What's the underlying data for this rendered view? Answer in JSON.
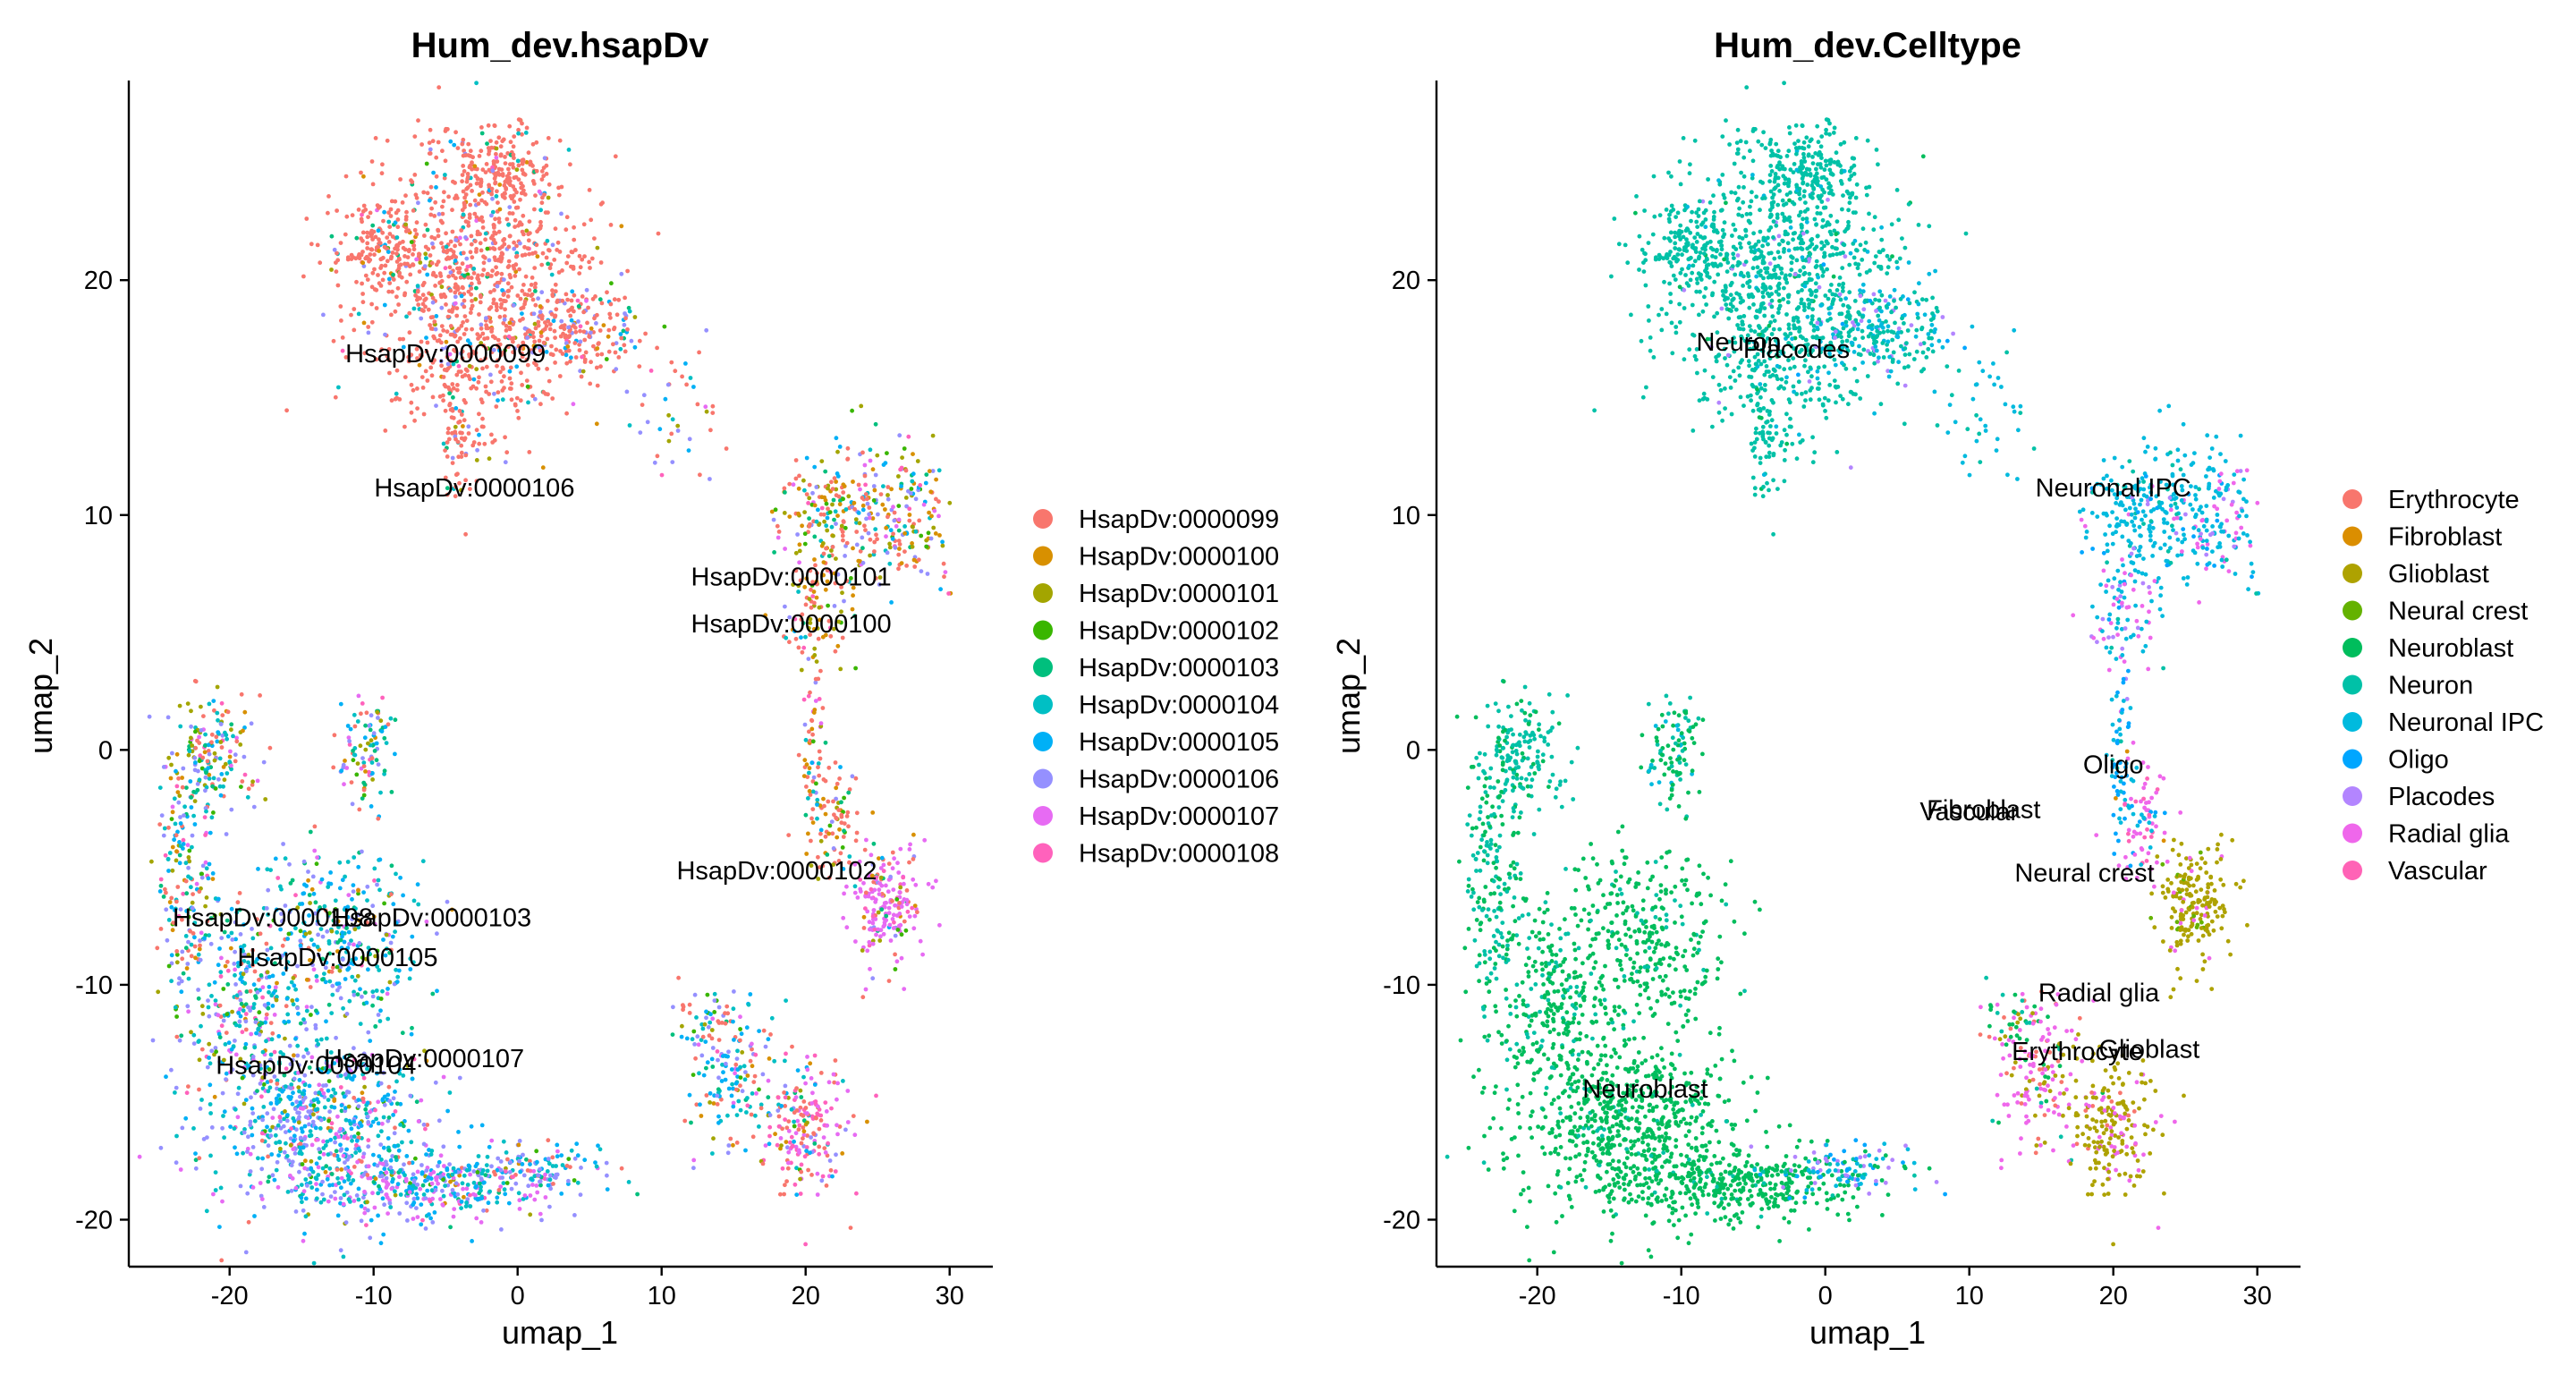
{
  "chart_data": [
    {
      "type": "scatter",
      "title": "Hum_dev.hsapDv",
      "xlabel": "umap_1",
      "ylabel": "umap_2",
      "xlim": [
        -27,
        33
      ],
      "ylim": [
        -22,
        28.5
      ],
      "xticks": [
        -20,
        -10,
        0,
        10,
        20,
        30
      ],
      "yticks": [
        -20,
        -10,
        0,
        10,
        20
      ],
      "grid": false,
      "legend_position": "right",
      "series": [
        {
          "name": "HsapDv:0000099",
          "color": "#F8766D"
        },
        {
          "name": "HsapDv:0000100",
          "color": "#D89000"
        },
        {
          "name": "HsapDv:0000101",
          "color": "#A3A500"
        },
        {
          "name": "HsapDv:0000102",
          "color": "#39B600"
        },
        {
          "name": "HsapDv:0000103",
          "color": "#00BF7D"
        },
        {
          "name": "HsapDv:0000104",
          "color": "#00BFC4"
        },
        {
          "name": "HsapDv:0000105",
          "color": "#00B0F6"
        },
        {
          "name": "HsapDv:0000106",
          "color": "#9590FF"
        },
        {
          "name": "HsapDv:0000107",
          "color": "#E76BF3"
        },
        {
          "name": "HsapDv:0000108",
          "color": "#FF62BC"
        }
      ],
      "annotations": [
        {
          "text": "HsapDv:0000099",
          "x": -5,
          "y": 16.5
        },
        {
          "text": "HsapDv:0000106",
          "x": -3,
          "y": 10.8
        },
        {
          "text": "HsapDv:0000101",
          "x": 19,
          "y": 7
        },
        {
          "text": "HsapDv:0000100",
          "x": 19,
          "y": 5
        },
        {
          "text": "HsapDv:0000102",
          "x": 18,
          "y": -5.5
        },
        {
          "text": "HsapDv:0000108",
          "x": -17,
          "y": -7.5
        },
        {
          "text": "HsapDv:0000103",
          "x": -6,
          "y": -7.5
        },
        {
          "text": "HsapDv:0000105",
          "x": -12.5,
          "y": -9.2
        },
        {
          "text": "HsapDv:0000107",
          "x": -6.5,
          "y": -13.5
        },
        {
          "text": "HsapDv:0000104",
          "x": -14,
          "y": -13.8
        }
      ],
      "clusters": [
        {
          "x": -3,
          "y": 20,
          "sx": 4,
          "sy": 3,
          "n": 1000,
          "w": [
            0.8,
            0.02,
            0.02,
            0.01,
            0.01,
            0.03,
            0.03,
            0.06,
            0.01,
            0.01
          ]
        },
        {
          "x": -9,
          "y": 21.5,
          "sx": 2,
          "sy": 0.8,
          "n": 150,
          "w": [
            0.85,
            0.02,
            0.02,
            0.01,
            0.01,
            0.02,
            0.02,
            0.03,
            0.01,
            0.01
          ]
        },
        {
          "x": -1,
          "y": 24.5,
          "sx": 1.5,
          "sy": 1,
          "n": 160,
          "w": [
            0.85,
            0.02,
            0.02,
            0.01,
            0.01,
            0.02,
            0.02,
            0.03,
            0.01,
            0.01
          ]
        },
        {
          "x": 4,
          "y": 18,
          "sx": 2.5,
          "sy": 1.2,
          "n": 200,
          "w": [
            0.6,
            0.03,
            0.03,
            0.02,
            0.02,
            0.05,
            0.05,
            0.18,
            0.01,
            0.01
          ]
        },
        {
          "x": -4,
          "y": 14,
          "sx": 0.8,
          "sy": 2,
          "n": 90,
          "w": [
            0.7,
            0.03,
            0.03,
            0.02,
            0.02,
            0.05,
            0.03,
            0.1,
            0.01,
            0.01
          ]
        },
        {
          "x": 11,
          "y": 14,
          "sx": 1.5,
          "sy": 1.5,
          "n": 40,
          "w": [
            0.4,
            0.05,
            0.05,
            0.02,
            0.02,
            0.1,
            0.1,
            0.2,
            0.03,
            0.03
          ]
        },
        {
          "x": 22,
          "y": 10,
          "sx": 2,
          "sy": 1.5,
          "n": 220,
          "w": [
            0.3,
            0.15,
            0.15,
            0.05,
            0.05,
            0.08,
            0.07,
            0.1,
            0.03,
            0.02
          ]
        },
        {
          "x": 27,
          "y": 10,
          "sx": 1.5,
          "sy": 1.5,
          "n": 150,
          "w": [
            0.2,
            0.15,
            0.15,
            0.04,
            0.04,
            0.08,
            0.12,
            0.12,
            0.05,
            0.05
          ]
        },
        {
          "x": 21,
          "y": 6,
          "sx": 1.2,
          "sy": 1.5,
          "n": 80,
          "w": [
            0.25,
            0.25,
            0.2,
            0.05,
            0.05,
            0.05,
            0.05,
            0.06,
            0.02,
            0.02
          ]
        },
        {
          "x": 20.5,
          "y": 0,
          "sx": 0.4,
          "sy": 2.5,
          "n": 60,
          "w": [
            0.4,
            0.15,
            0.15,
            0.05,
            0.05,
            0.05,
            0.05,
            0.05,
            0.03,
            0.02
          ]
        },
        {
          "x": 22,
          "y": -3,
          "sx": 1,
          "sy": 1.2,
          "n": 80,
          "w": [
            0.5,
            0.1,
            0.1,
            0.05,
            0.05,
            0.05,
            0.05,
            0.05,
            0.03,
            0.02
          ]
        },
        {
          "x": 25.5,
          "y": -6.5,
          "sx": 1.2,
          "sy": 1.2,
          "n": 200,
          "w": [
            0.1,
            0.02,
            0.05,
            0.02,
            0.02,
            0.02,
            0.02,
            0.05,
            0.6,
            0.1
          ]
        },
        {
          "x": -10.5,
          "y": 0,
          "sx": 1,
          "sy": 1.2,
          "n": 100,
          "w": [
            0.2,
            0.05,
            0.1,
            0.05,
            0.1,
            0.15,
            0.15,
            0.1,
            0.05,
            0.05
          ]
        },
        {
          "x": -21,
          "y": 0,
          "sx": 1.5,
          "sy": 1.2,
          "n": 150,
          "w": [
            0.15,
            0.05,
            0.15,
            0.05,
            0.1,
            0.15,
            0.1,
            0.15,
            0.05,
            0.05
          ]
        },
        {
          "x": -23,
          "y": -5,
          "sx": 1,
          "sy": 3,
          "n": 200,
          "w": [
            0.15,
            0.05,
            0.1,
            0.05,
            0.1,
            0.15,
            0.15,
            0.15,
            0.05,
            0.05
          ]
        },
        {
          "x": -13,
          "y": -8,
          "sx": 3,
          "sy": 2,
          "n": 350,
          "w": [
            0.05,
            0.03,
            0.05,
            0.02,
            0.08,
            0.25,
            0.25,
            0.2,
            0.05,
            0.02
          ]
        },
        {
          "x": -19,
          "y": -11,
          "sx": 2,
          "sy": 2,
          "n": 250,
          "w": [
            0.1,
            0.03,
            0.05,
            0.03,
            0.08,
            0.2,
            0.2,
            0.2,
            0.08,
            0.03
          ]
        },
        {
          "x": -14,
          "y": -16,
          "sx": 4,
          "sy": 2,
          "n": 700,
          "w": [
            0.03,
            0.02,
            0.03,
            0.02,
            0.05,
            0.22,
            0.22,
            0.28,
            0.1,
            0.03
          ]
        },
        {
          "x": -6,
          "y": -18.5,
          "sx": 4,
          "sy": 0.8,
          "n": 350,
          "w": [
            0.02,
            0.02,
            0.02,
            0.02,
            0.03,
            0.15,
            0.2,
            0.2,
            0.3,
            0.04
          ]
        },
        {
          "x": 1.5,
          "y": -17.8,
          "sx": 2.5,
          "sy": 0.6,
          "n": 120,
          "w": [
            0.1,
            0.02,
            0.02,
            0.02,
            0.05,
            0.2,
            0.2,
            0.3,
            0.05,
            0.04
          ]
        },
        {
          "x": 15,
          "y": -14,
          "sx": 1.5,
          "sy": 1.5,
          "n": 150,
          "w": [
            0.2,
            0.03,
            0.03,
            0.03,
            0.05,
            0.25,
            0.2,
            0.15,
            0.04,
            0.02
          ]
        },
        {
          "x": 20,
          "y": -16,
          "sx": 1.5,
          "sy": 1.5,
          "n": 200,
          "w": [
            0.3,
            0.03,
            0.03,
            0.03,
            0.03,
            0.05,
            0.05,
            0.08,
            0.2,
            0.2
          ]
        },
        {
          "x": 13,
          "y": -11.5,
          "sx": 1.5,
          "sy": 0.5,
          "n": 40,
          "w": [
            0.3,
            0.05,
            0.05,
            0.05,
            0.05,
            0.15,
            0.1,
            0.15,
            0.05,
            0.05
          ]
        }
      ]
    },
    {
      "type": "scatter",
      "title": "Hum_dev.Celltype",
      "xlabel": "umap_1",
      "ylabel": "umap_2",
      "xlim": [
        -27,
        33
      ],
      "ylim": [
        -22,
        28.5
      ],
      "xticks": [
        -20,
        -10,
        0,
        10,
        20,
        30
      ],
      "yticks": [
        -20,
        -10,
        0,
        10,
        20
      ],
      "grid": false,
      "legend_position": "right",
      "series": [
        {
          "name": "Erythrocyte",
          "color": "#F8766D"
        },
        {
          "name": "Fibroblast",
          "color": "#DB8E00"
        },
        {
          "name": "Glioblast",
          "color": "#AEA200"
        },
        {
          "name": "Neural crest",
          "color": "#64B200"
        },
        {
          "name": "Neuroblast",
          "color": "#00BD5C"
        },
        {
          "name": "Neuron",
          "color": "#00C1A7"
        },
        {
          "name": "Neuronal IPC",
          "color": "#00BADE"
        },
        {
          "name": "Oligo",
          "color": "#00A6FF"
        },
        {
          "name": "Placodes",
          "color": "#B385FF"
        },
        {
          "name": "Radial glia",
          "color": "#EF67EB"
        },
        {
          "name": "Vascular",
          "color": "#FF63B6"
        }
      ],
      "annotations": [
        {
          "text": "Neuron",
          "x": -6,
          "y": 17
        },
        {
          "text": "Placodes",
          "x": -2,
          "y": 16.7
        },
        {
          "text": "Neuronal IPC",
          "x": 20,
          "y": 10.8
        },
        {
          "text": "Oligo",
          "x": 20,
          "y": -1
        },
        {
          "text": "Fibroblast",
          "x": 11,
          "y": -2.9
        },
        {
          "text": "Vascular",
          "x": 10,
          "y": -3
        },
        {
          "text": "Neural crest",
          "x": 18,
          "y": -5.6
        },
        {
          "text": "Radial glia",
          "x": 19,
          "y": -10.7
        },
        {
          "text": "Erythrocyte",
          "x": 17.5,
          "y": -13.2
        },
        {
          "text": "Glioblast",
          "x": 22.5,
          "y": -13.1
        },
        {
          "text": "Neuroblast",
          "x": -12.5,
          "y": -14.8
        }
      ],
      "clusters": [
        {
          "x": -3,
          "y": 20,
          "sx": 4,
          "sy": 3,
          "n": 1000,
          "w": [
            0,
            0,
            0,
            0,
            0.02,
            0.9,
            0.05,
            0,
            0.03,
            0,
            0
          ]
        },
        {
          "x": -9,
          "y": 21.5,
          "sx": 2,
          "sy": 0.8,
          "n": 150,
          "w": [
            0,
            0,
            0,
            0,
            0.02,
            0.95,
            0.03,
            0,
            0,
            0,
            0
          ]
        },
        {
          "x": -1,
          "y": 24.5,
          "sx": 1.5,
          "sy": 1,
          "n": 160,
          "w": [
            0,
            0,
            0,
            0,
            0,
            0.97,
            0.03,
            0,
            0,
            0,
            0
          ]
        },
        {
          "x": 4,
          "y": 18,
          "sx": 2.5,
          "sy": 1.2,
          "n": 200,
          "w": [
            0,
            0,
            0,
            0,
            0,
            0.45,
            0.4,
            0.05,
            0.1,
            0,
            0
          ]
        },
        {
          "x": -4,
          "y": 14,
          "sx": 0.8,
          "sy": 2,
          "n": 90,
          "w": [
            0,
            0,
            0,
            0,
            0.1,
            0.85,
            0.05,
            0,
            0,
            0,
            0
          ]
        },
        {
          "x": 11,
          "y": 14,
          "sx": 1.5,
          "sy": 1.5,
          "n": 40,
          "w": [
            0,
            0,
            0,
            0,
            0,
            0.3,
            0.7,
            0,
            0,
            0,
            0
          ]
        },
        {
          "x": 22,
          "y": 10,
          "sx": 2,
          "sy": 1.5,
          "n": 220,
          "w": [
            0,
            0,
            0,
            0,
            0,
            0.1,
            0.8,
            0.05,
            0.02,
            0.03,
            0
          ]
        },
        {
          "x": 27,
          "y": 10,
          "sx": 1.5,
          "sy": 1.5,
          "n": 150,
          "w": [
            0,
            0,
            0,
            0,
            0,
            0.05,
            0.6,
            0.05,
            0.1,
            0.2,
            0
          ]
        },
        {
          "x": 21,
          "y": 6,
          "sx": 1.2,
          "sy": 1.5,
          "n": 80,
          "w": [
            0,
            0,
            0,
            0,
            0,
            0.05,
            0.3,
            0.05,
            0.2,
            0.4,
            0
          ]
        },
        {
          "x": 20.5,
          "y": 0,
          "sx": 0.4,
          "sy": 2.5,
          "n": 60,
          "w": [
            0,
            0,
            0,
            0,
            0,
            0.1,
            0.4,
            0.4,
            0,
            0.1,
            0
          ]
        },
        {
          "x": 22,
          "y": -3,
          "sx": 1,
          "sy": 1.2,
          "n": 80,
          "w": [
            0,
            0.05,
            0,
            0,
            0,
            0,
            0.2,
            0.1,
            0,
            0.35,
            0.3
          ]
        },
        {
          "x": 25.5,
          "y": -6.5,
          "sx": 1.2,
          "sy": 1.2,
          "n": 200,
          "w": [
            0,
            0,
            0.9,
            0.03,
            0,
            0,
            0,
            0,
            0,
            0.07,
            0
          ]
        },
        {
          "x": -10.5,
          "y": 0,
          "sx": 1,
          "sy": 1.2,
          "n": 100,
          "w": [
            0,
            0,
            0,
            0,
            0.6,
            0.3,
            0.1,
            0,
            0,
            0,
            0
          ]
        },
        {
          "x": -21,
          "y": 0,
          "sx": 1.5,
          "sy": 1.2,
          "n": 150,
          "w": [
            0,
            0,
            0,
            0,
            0.2,
            0.8,
            0,
            0,
            0,
            0,
            0
          ]
        },
        {
          "x": -23,
          "y": -5,
          "sx": 1,
          "sy": 3,
          "n": 200,
          "w": [
            0,
            0,
            0,
            0,
            0.4,
            0.6,
            0,
            0,
            0,
            0,
            0
          ]
        },
        {
          "x": -13,
          "y": -8,
          "sx": 3,
          "sy": 2,
          "n": 350,
          "w": [
            0,
            0,
            0,
            0,
            0.9,
            0.1,
            0,
            0,
            0,
            0,
            0
          ]
        },
        {
          "x": -19,
          "y": -11,
          "sx": 2,
          "sy": 2,
          "n": 250,
          "w": [
            0,
            0,
            0,
            0,
            0.75,
            0.25,
            0,
            0,
            0,
            0,
            0
          ]
        },
        {
          "x": -14,
          "y": -16,
          "sx": 4,
          "sy": 2,
          "n": 700,
          "w": [
            0,
            0,
            0,
            0,
            0.95,
            0.05,
            0,
            0,
            0,
            0,
            0
          ]
        },
        {
          "x": -6,
          "y": -18.5,
          "sx": 4,
          "sy": 0.8,
          "n": 350,
          "w": [
            0,
            0,
            0,
            0,
            0.95,
            0.05,
            0,
            0,
            0,
            0,
            0
          ]
        },
        {
          "x": 1.5,
          "y": -17.8,
          "sx": 2.5,
          "sy": 0.6,
          "n": 120,
          "w": [
            0,
            0,
            0,
            0,
            0.2,
            0.1,
            0.3,
            0.2,
            0.2,
            0,
            0
          ]
        },
        {
          "x": 15,
          "y": -14,
          "sx": 1.5,
          "sy": 1.5,
          "n": 150,
          "w": [
            0.2,
            0,
            0.15,
            0,
            0.1,
            0.05,
            0,
            0,
            0,
            0.5,
            0
          ]
        },
        {
          "x": 20,
          "y": -16,
          "sx": 1.5,
          "sy": 1.5,
          "n": 200,
          "w": [
            0.05,
            0,
            0.75,
            0,
            0,
            0,
            0,
            0,
            0,
            0.2,
            0
          ]
        },
        {
          "x": 13,
          "y": -11.5,
          "sx": 1.5,
          "sy": 0.5,
          "n": 40,
          "w": [
            0.1,
            0,
            0.1,
            0,
            0.5,
            0.2,
            0,
            0,
            0,
            0.1,
            0
          ]
        }
      ]
    }
  ]
}
